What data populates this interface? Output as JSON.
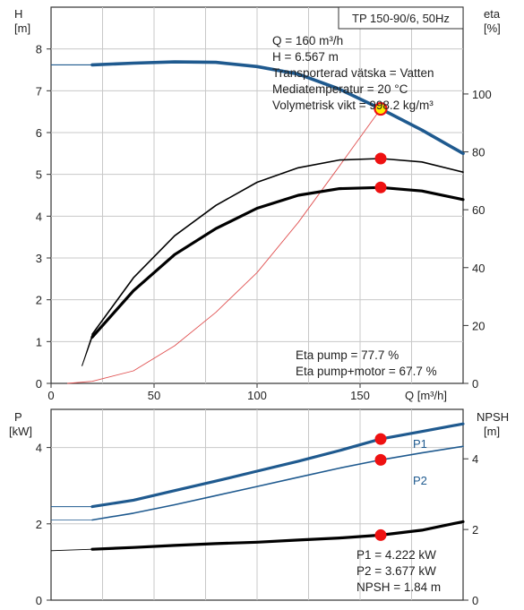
{
  "header": {
    "pump_model": "TP 150-90/6, 50Hz"
  },
  "top_panel": {
    "y_left_label": "H",
    "y_left_unit": "[m]",
    "y_right_label": "eta",
    "y_right_unit": "[%]",
    "x_label": "Q [m³/h]",
    "x_ticks": [
      "0",
      "50",
      "100",
      "150"
    ],
    "y_left_ticks": [
      "0",
      "1",
      "2",
      "3",
      "4",
      "5",
      "6",
      "7",
      "8"
    ],
    "y_right_ticks": [
      "0",
      "20",
      "40",
      "60",
      "80",
      "100"
    ],
    "info_lines": [
      "Q = 160 m³/h",
      "H = 6.567 m",
      "Transporterad vätska = Vatten",
      "Mediatemperatur = 20 °C",
      "Volymetrisk vikt = 998.2 kg/m³"
    ],
    "eta_lines": [
      "Eta pump = 77.7 %",
      "Eta pump+motor = 67.7 %"
    ]
  },
  "bottom_panel": {
    "y_left_label": "P",
    "y_left_unit": "[kW]",
    "y_right_label": "NPSH",
    "y_right_unit": "[m]",
    "y_left_ticks": [
      "0",
      "2",
      "4"
    ],
    "y_right_ticks": [
      "0",
      "2",
      "4"
    ],
    "series_labels": [
      "P1",
      "P2"
    ],
    "info_lines": [
      "P1 = 4.222 kW",
      "P2 = 3.677 kW",
      "NPSH = 1.84 m"
    ]
  },
  "colors": {
    "head": "#1f5a8f",
    "power": "#1f5a8f",
    "system": "#e05050",
    "efficiency": "#000000",
    "npsh": "#000000",
    "marker": "#ee1111",
    "op_marker_fill": "#ffee00"
  },
  "chart_data": [
    {
      "type": "line",
      "xlim": [
        0,
        200
      ],
      "ylim_left": [
        0,
        9
      ],
      "ylim_right": [
        0,
        130
      ],
      "grid": true,
      "series": [
        {
          "axis": "left",
          "style": "head",
          "x": [
            0,
            20,
            40,
            60,
            80,
            100,
            120,
            140,
            160,
            180,
            200
          ],
          "y": [
            7.62,
            7.62,
            7.66,
            7.69,
            7.68,
            7.58,
            7.4,
            7.04,
            6.567,
            6.06,
            5.5
          ],
          "extrapolated_below": 20
        },
        {
          "axis": "left",
          "style": "system",
          "x": [
            8,
            20,
            40,
            60,
            80,
            100,
            120,
            140,
            160
          ],
          "y": [
            0.0,
            0.05,
            0.3,
            0.9,
            1.7,
            2.65,
            3.85,
            5.2,
            6.567
          ]
        },
        {
          "axis": "right",
          "style": "efficiency-thin",
          "x": [
            15,
            20,
            40,
            60,
            80,
            100,
            120,
            140,
            160,
            180,
            200
          ],
          "y": [
            6,
            17,
            36.5,
            51,
            61.5,
            69.5,
            74.5,
            77.2,
            77.7,
            76.5,
            73
          ],
          "extrapolated_below": 20
        },
        {
          "axis": "right",
          "style": "efficiency-thick",
          "x": [
            15,
            20,
            40,
            60,
            80,
            100,
            120,
            140,
            160,
            180,
            200
          ],
          "y": [
            6,
            16,
            32,
            44.5,
            53.5,
            60.5,
            65,
            67.3,
            67.7,
            66.5,
            63.5
          ],
          "extrapolated_below": 20
        }
      ],
      "markers": [
        {
          "axis": "left",
          "x": 160,
          "y": 6.567,
          "kind": "operating-point"
        },
        {
          "axis": "right",
          "x": 160,
          "y": 77.7
        },
        {
          "axis": "right",
          "x": 160,
          "y": 67.7
        }
      ]
    },
    {
      "type": "line",
      "xlim": [
        0,
        200
      ],
      "ylim_left": [
        0,
        5
      ],
      "ylim_right": [
        0,
        5.4
      ],
      "grid": true,
      "series": [
        {
          "axis": "left",
          "style": "p1",
          "name": "P1",
          "x": [
            0,
            20,
            40,
            60,
            80,
            100,
            120,
            140,
            160,
            180,
            200
          ],
          "y": [
            2.45,
            2.45,
            2.62,
            2.87,
            3.12,
            3.38,
            3.64,
            3.92,
            4.222,
            4.42,
            4.62
          ],
          "extrapolated_below": 20
        },
        {
          "axis": "left",
          "style": "p2",
          "name": "P2",
          "x": [
            0,
            20,
            40,
            60,
            80,
            100,
            120,
            140,
            160,
            180,
            200
          ],
          "y": [
            2.1,
            2.1,
            2.28,
            2.5,
            2.74,
            2.98,
            3.22,
            3.46,
            3.677,
            3.86,
            4.03
          ],
          "extrapolated_below": 20
        },
        {
          "axis": "right",
          "style": "npsh",
          "x": [
            0,
            20,
            40,
            60,
            80,
            100,
            120,
            140,
            160,
            180,
            200
          ],
          "y": [
            1.4,
            1.44,
            1.49,
            1.55,
            1.6,
            1.64,
            1.7,
            1.76,
            1.84,
            1.98,
            2.22
          ],
          "extrapolated_below": 20
        }
      ],
      "markers": [
        {
          "axis": "left",
          "x": 160,
          "y": 4.222
        },
        {
          "axis": "left",
          "x": 160,
          "y": 3.677
        },
        {
          "axis": "right",
          "x": 160,
          "y": 1.84
        }
      ]
    }
  ]
}
